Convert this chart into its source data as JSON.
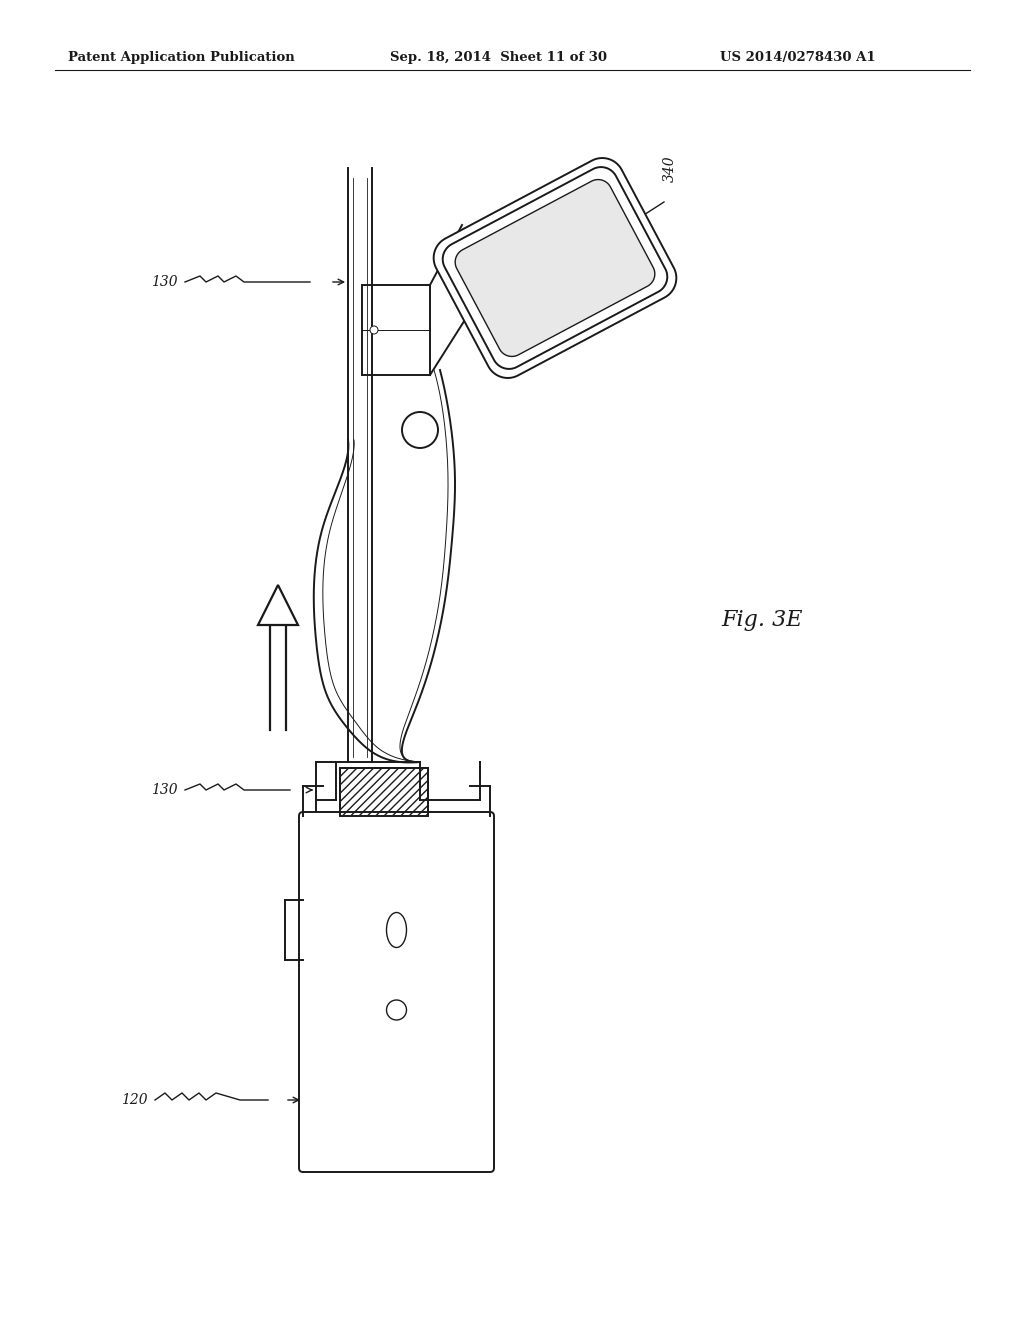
{
  "bg_color": "#ffffff",
  "header_left": "Patent Application Publication",
  "header_center": "Sep. 18, 2014  Sheet 11 of 30",
  "header_right": "US 2014/0278430 A1",
  "fig_label": "Fig. 3E",
  "col": "#1a1a1a"
}
